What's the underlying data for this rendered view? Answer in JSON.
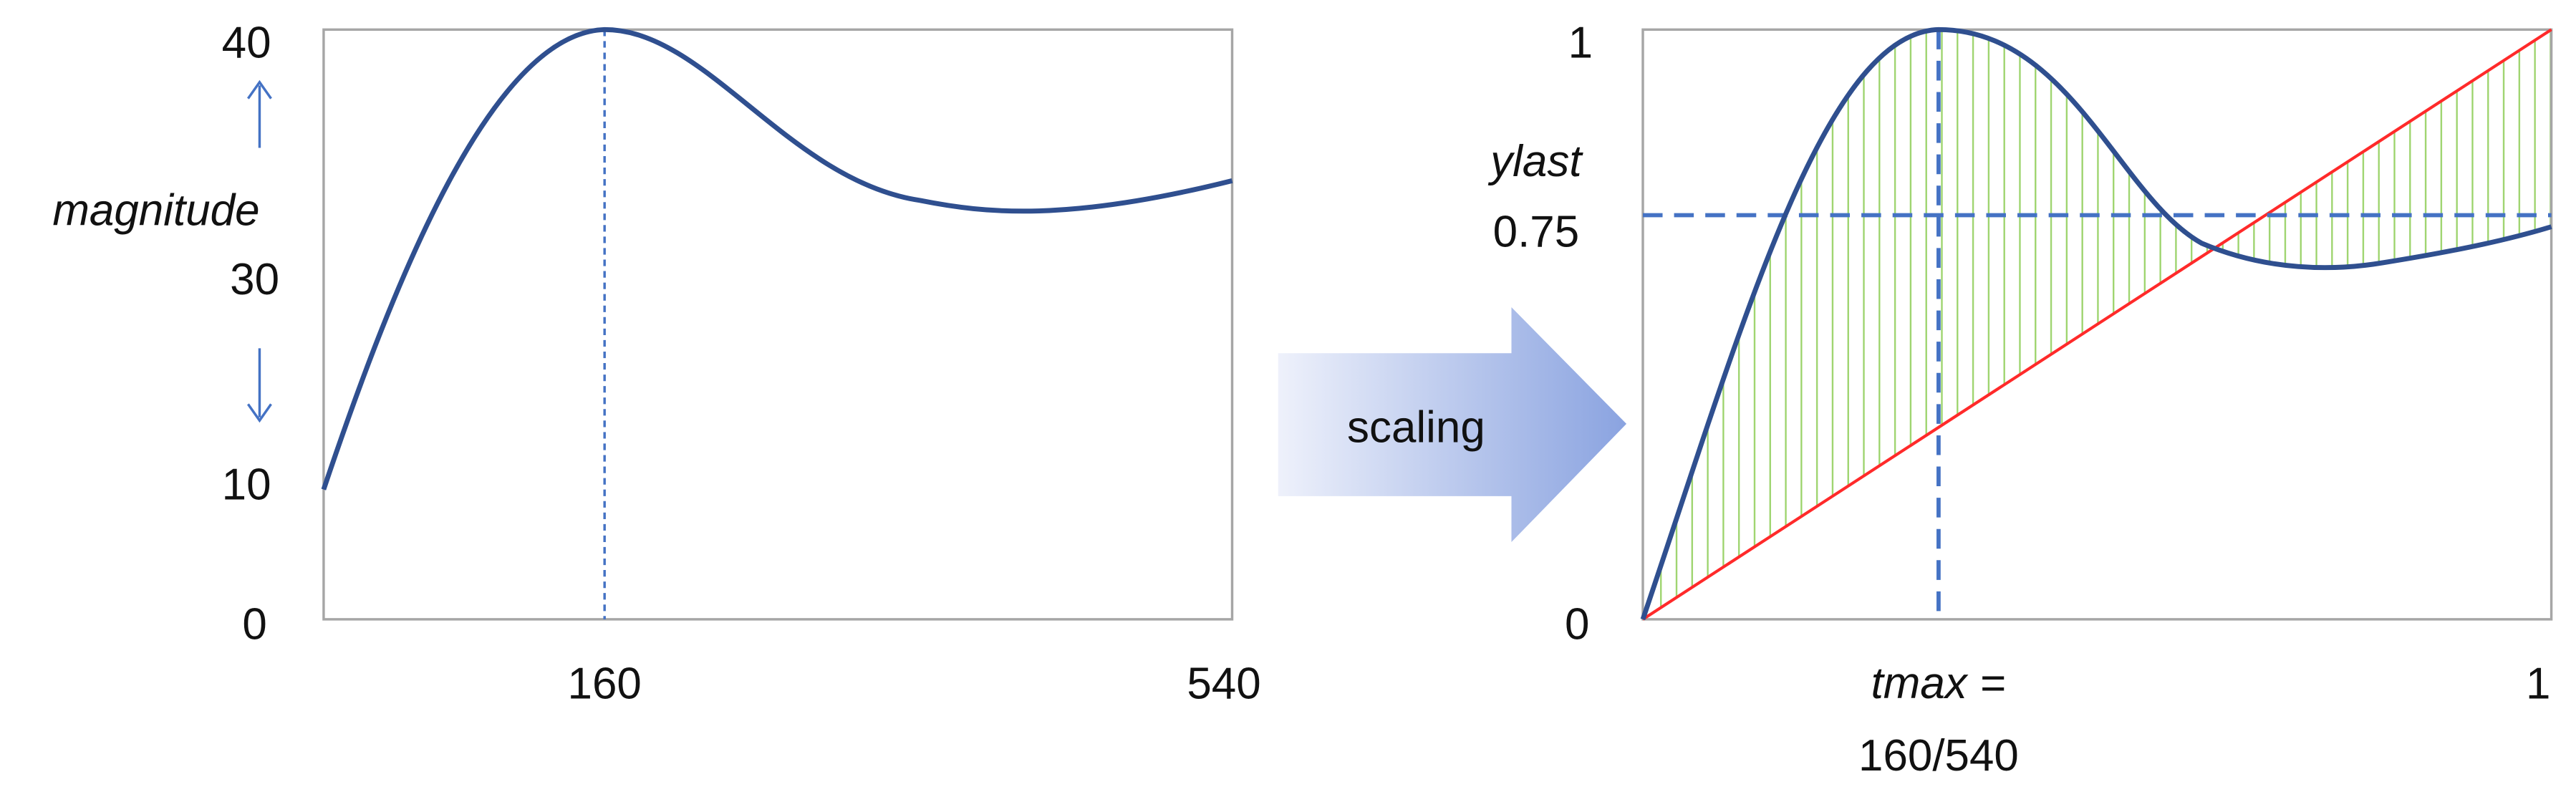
{
  "left_plot": {
    "y_labels": [
      "40",
      "30",
      "10",
      "0"
    ],
    "y_axis_label": "magnitude",
    "x_labels": [
      "160",
      "540"
    ]
  },
  "arrow_label": "scaling",
  "right_plot": {
    "y_labels": [
      "1",
      "0.75",
      "0"
    ],
    "ylast_label": "ylast",
    "x_labels": [
      "1"
    ],
    "tmax_label": "tmax",
    "tmax_eq": "=",
    "tmax_value": "160/540"
  }
}
